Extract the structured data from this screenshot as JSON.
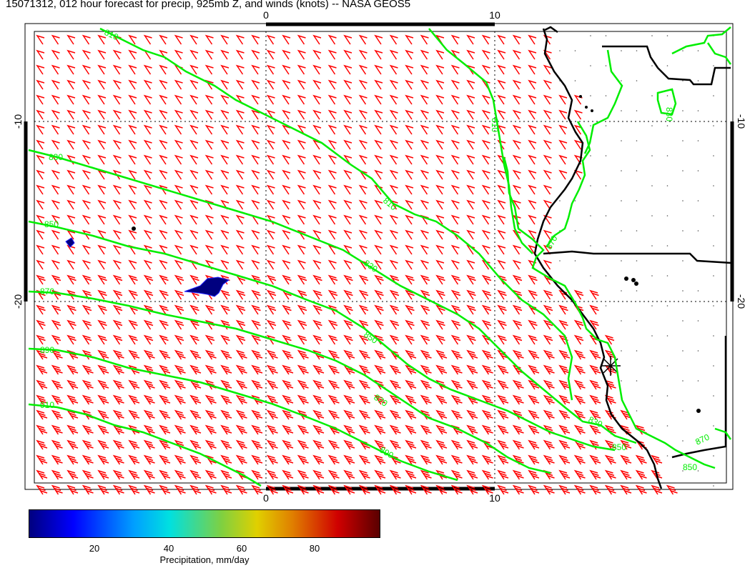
{
  "title": "15071312, 012 hour forecast for precip, 925mb Z, and winds (knots) -- NASA GEOS5",
  "axes": {
    "top_ticks": [
      "0",
      "10"
    ],
    "bottom_ticks": [
      "0",
      "10"
    ],
    "left_ticks": [
      "-10",
      "-20"
    ],
    "right_ticks": [
      "-10",
      "-20"
    ]
  },
  "contour_labels": [
    "810",
    "810",
    "830",
    "830",
    "850",
    "850",
    "870",
    "870",
    "890",
    "890",
    "910",
    "810",
    "830",
    "850",
    "870",
    "850",
    "870",
    "830"
  ],
  "colorbar": {
    "ticks": [
      "20",
      "40",
      "60",
      "80"
    ],
    "label": "Precipitation, mm/day"
  },
  "colors": {
    "contour": "#00ee00",
    "wind_barb": "#ff0000",
    "coastline": "#000000",
    "precip": "#00007f"
  }
}
